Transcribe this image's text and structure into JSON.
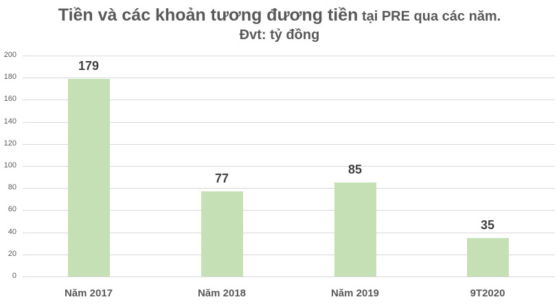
{
  "chart_data": {
    "type": "bar",
    "title": "Tiền và các khoản tương đương tiền tại PRE qua các năm.",
    "title_parts": [
      "Tiền và các khoản tương đương tiền",
      " tại PRE qua các năm."
    ],
    "subtitle": "Đvt: tỷ đồng",
    "xlabel": "",
    "ylabel": "",
    "categories": [
      "Năm 2017",
      "Năm 2018",
      "Năm 2019",
      "9T2020"
    ],
    "values": [
      179,
      77,
      85,
      35
    ],
    "data_labels": [
      "179",
      "77",
      "85",
      "35"
    ],
    "ylim": [
      0,
      200
    ],
    "yticks": [
      "0",
      "20",
      "40",
      "60",
      "80",
      "100",
      "120",
      "140",
      "160",
      "180",
      "200"
    ],
    "grid": true,
    "legend": "none",
    "colors": {
      "bar": "#c5e0b4",
      "grid": "#d9d9d9",
      "text": "#595959",
      "label": "#404040"
    }
  }
}
